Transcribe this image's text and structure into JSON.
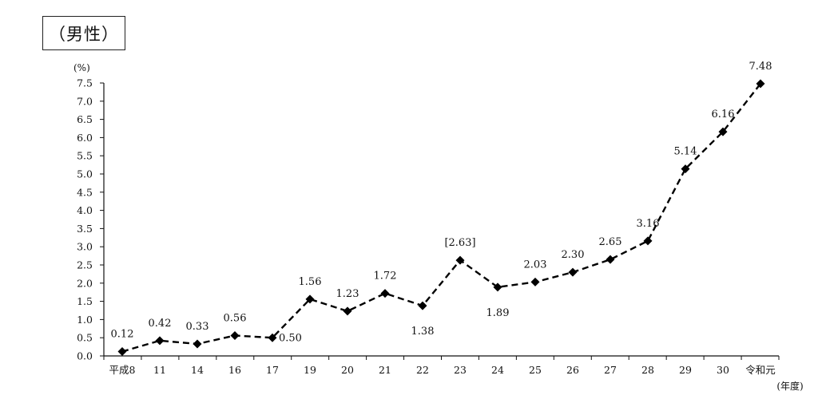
{
  "title": "（男性）",
  "chart_data": {
    "type": "line",
    "title": "（男性）",
    "ylabel": "(%)",
    "xlabel": "(年度)",
    "ylim": [
      0,
      7.5
    ],
    "yticks": [
      "0.0",
      "0.5",
      "1.0",
      "1.5",
      "2.0",
      "2.5",
      "3.0",
      "3.5",
      "4.0",
      "4.5",
      "5.0",
      "5.5",
      "6.0",
      "6.5",
      "7.0",
      "7.5"
    ],
    "categories": [
      "平成8",
      "11",
      "14",
      "16",
      "17",
      "19",
      "20",
      "21",
      "22",
      "23",
      "24",
      "25",
      "26",
      "27",
      "28",
      "29",
      "30",
      "令和元"
    ],
    "series": [
      {
        "values": [
          0.12,
          0.42,
          0.33,
          0.56,
          0.5,
          1.56,
          1.23,
          1.72,
          1.38,
          2.63,
          1.89,
          2.03,
          2.3,
          2.65,
          3.16,
          5.14,
          6.16,
          7.48
        ],
        "labels": [
          "0.12",
          "0.42",
          "0.33",
          "0.56",
          "0.50",
          "1.56",
          "1.23",
          "1.72",
          "1.38",
          "[2.63]",
          "1.89",
          "2.03",
          "2.30",
          "2.65",
          "3.16",
          "5.14",
          "6.16",
          "7.48"
        ]
      }
    ],
    "line_style": "dashed",
    "marker": "diamond",
    "color": "#000000",
    "grid": false
  }
}
